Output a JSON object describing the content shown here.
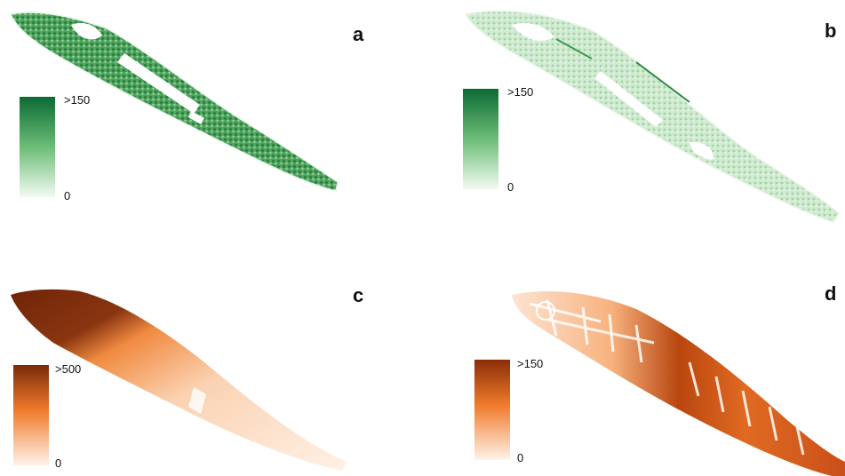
{
  "panels": [
    {
      "label": "a",
      "legend": {
        "max": ">150",
        "min": "0"
      },
      "colors": {
        "top": "#0b6a33",
        "bottom": "#f2faf2"
      }
    },
    {
      "label": "b",
      "legend": {
        "max": ">150",
        "min": "0"
      },
      "colors": {
        "top": "#0b6a33",
        "bottom": "#f2faf2"
      }
    },
    {
      "label": "c",
      "legend": {
        "max": ">500",
        "min": "0"
      },
      "colors": {
        "top": "#7a2a0a",
        "bottom": "#fff3ea"
      }
    },
    {
      "label": "d",
      "legend": {
        "max": ">150",
        "min": "0"
      },
      "colors": {
        "top": "#8a2e08",
        "bottom": "#fff3ea"
      }
    }
  ]
}
